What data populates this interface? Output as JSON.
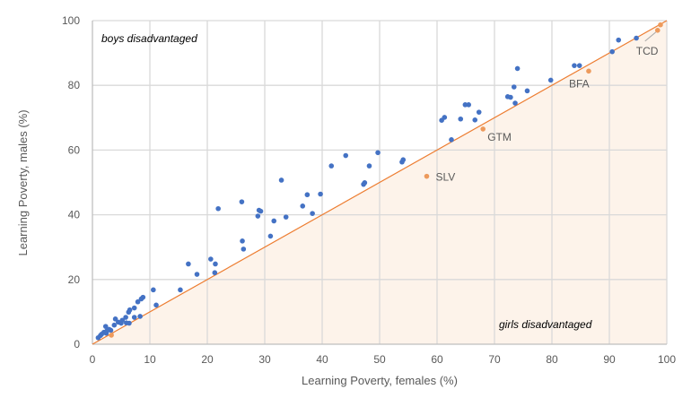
{
  "chart_data": {
    "type": "scatter",
    "xlabel": "Learning Poverty, females (%)",
    "ylabel": "Learning Poverty, males (%)",
    "xlim": [
      0,
      100
    ],
    "ylim": [
      0,
      100
    ],
    "x_ticks": [
      0,
      10,
      20,
      30,
      40,
      50,
      60,
      70,
      80,
      90,
      100
    ],
    "y_ticks": [
      0,
      20,
      40,
      60,
      80,
      100
    ],
    "x_tick_labels": [
      "0",
      "10",
      "20",
      "30",
      "40",
      "50",
      "60",
      "70",
      "80",
      "90",
      "100"
    ],
    "y_tick_labels": [
      "0",
      "20",
      "40",
      "60",
      "80",
      "100"
    ],
    "grid": true,
    "annotations": {
      "upper_left": "boys disadvantaged",
      "lower_right": "girls disadvantaged"
    },
    "colors": {
      "boys_points": "#4472c4",
      "girls_points": "#ed9a5c",
      "parity_line": "#ed7d31",
      "girls_region": "#fdf3ea",
      "grid": "#d9d9d9"
    },
    "parity_line": [
      [
        0,
        0
      ],
      [
        100,
        100
      ]
    ],
    "series": [
      {
        "points": [
          [
            1.0,
            2.0
          ],
          [
            1.4,
            2.7
          ],
          [
            1.6,
            3.1
          ],
          [
            2.0,
            3.7
          ],
          [
            2.4,
            3.4
          ],
          [
            2.5,
            4.1
          ],
          [
            2.9,
            4.6
          ],
          [
            3.2,
            4.3
          ],
          [
            2.3,
            5.5
          ],
          [
            3.8,
            5.9
          ],
          [
            4.5,
            6.8
          ],
          [
            5.0,
            6.5
          ],
          [
            5.2,
            7.4
          ],
          [
            4.0,
            7.8
          ],
          [
            5.9,
            6.6
          ],
          [
            6.4,
            6.5
          ],
          [
            5.8,
            8.3
          ],
          [
            7.3,
            8.3
          ],
          [
            8.3,
            8.6
          ],
          [
            6.3,
            9.9
          ],
          [
            6.5,
            10.6
          ],
          [
            7.3,
            11.2
          ],
          [
            7.9,
            13.1
          ],
          [
            8.5,
            14.0
          ],
          [
            8.8,
            14.5
          ],
          [
            10.6,
            16.8
          ],
          [
            11.1,
            12.1
          ],
          [
            15.3,
            16.8
          ],
          [
            16.7,
            24.8
          ],
          [
            18.2,
            21.6
          ],
          [
            20.6,
            26.3
          ],
          [
            21.4,
            24.8
          ],
          [
            21.3,
            22.1
          ],
          [
            21.9,
            41.9
          ],
          [
            26.0,
            44.0
          ],
          [
            26.1,
            31.9
          ],
          [
            26.3,
            29.4
          ],
          [
            28.8,
            39.6
          ],
          [
            29.0,
            41.4
          ],
          [
            29.3,
            41.1
          ],
          [
            31.0,
            33.4
          ],
          [
            31.6,
            38.1
          ],
          [
            32.9,
            50.7
          ],
          [
            33.7,
            39.3
          ],
          [
            36.6,
            42.7
          ],
          [
            37.4,
            46.2
          ],
          [
            38.3,
            40.4
          ],
          [
            39.7,
            46.4
          ],
          [
            41.6,
            55.1
          ],
          [
            44.1,
            58.3
          ],
          [
            48.2,
            55.1
          ],
          [
            47.2,
            49.4
          ],
          [
            47.4,
            49.9
          ],
          [
            49.7,
            59.2
          ],
          [
            53.9,
            56.3
          ],
          [
            54.1,
            57.0
          ],
          [
            60.8,
            69.2
          ],
          [
            61.3,
            70.1
          ],
          [
            62.5,
            63.2
          ],
          [
            64.1,
            69.6
          ],
          [
            64.9,
            74.0
          ],
          [
            65.5,
            74.0
          ],
          [
            66.6,
            69.3
          ],
          [
            67.3,
            71.7
          ],
          [
            72.3,
            76.5
          ],
          [
            72.8,
            76.3
          ],
          [
            73.6,
            74.5
          ],
          [
            73.4,
            79.5
          ],
          [
            74.0,
            85.2
          ],
          [
            75.7,
            78.3
          ],
          [
            79.8,
            81.6
          ],
          [
            83.9,
            86.1
          ],
          [
            84.8,
            86.1
          ],
          [
            90.5,
            90.4
          ],
          [
            91.6,
            94.0
          ],
          [
            94.7,
            94.6
          ]
        ]
      },
      {
        "points": [
          [
            3.3,
            2.8
          ],
          [
            58.2,
            51.9
          ],
          [
            68.0,
            66.5
          ],
          [
            86.4,
            84.4
          ],
          [
            98.4,
            97.0
          ],
          [
            98.9,
            98.7
          ]
        ],
        "labels": [
          "",
          "SLV",
          "GTM",
          "BFA",
          "TCD",
          ""
        ]
      }
    ]
  }
}
